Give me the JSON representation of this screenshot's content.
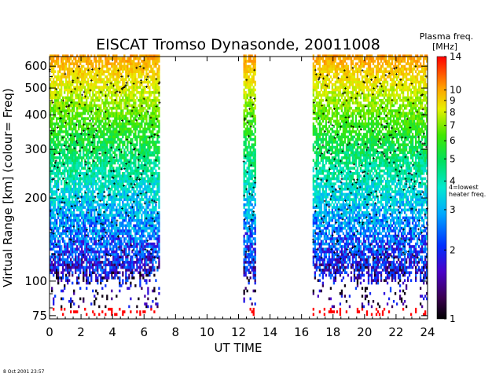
{
  "chart_data": {
    "type": "heatmap",
    "title": "EISCAT Tromso Dynasonde,  20011008",
    "xlabel": "UT TIME",
    "ylabel": "Virtual Range [km]   (colour= Freq)",
    "x_ticks": [
      0,
      2,
      4,
      6,
      8,
      10,
      12,
      14,
      16,
      18,
      20,
      22,
      24
    ],
    "xlim": [
      0,
      24
    ],
    "y_scale": "log",
    "y_ticks": [
      75,
      100,
      200,
      300,
      400,
      500,
      600
    ],
    "ylim": [
      73,
      650
    ],
    "colorbar": {
      "title_line1": "Plasma freq.",
      "title_line2": "[MHz]",
      "scale": "log",
      "range": [
        1,
        14
      ],
      "ticks": [
        1,
        2,
        3,
        4,
        5,
        6,
        7,
        8,
        9,
        10,
        14
      ],
      "annotation_value": 4,
      "annotation_line1": "4=lowest",
      "annotation_line2": "heater freq."
    },
    "data_blocks": [
      {
        "name": "0-7 UT",
        "x_range": [
          0,
          7
        ]
      },
      {
        "name": "12-13 UT",
        "x_range": [
          12.3,
          13.1
        ]
      },
      {
        "name": "16.7-24 UT",
        "x_range": [
          16.7,
          24
        ]
      }
    ],
    "timestamp": "8 Oct 2001 23:57"
  }
}
